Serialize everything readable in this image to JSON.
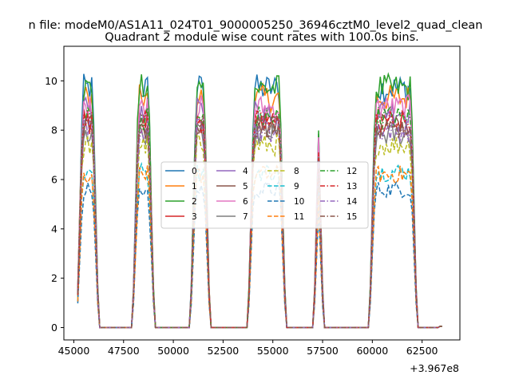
{
  "chart_data": {
    "type": "line",
    "suptitle": "n file: modeM0/AS1A11_024T01_9000005250_36946cztM0_level2_quad_clean",
    "title": "Quadrant 2 module wise count rates with 100.0s bins.",
    "xlabel": "",
    "ylabel": "",
    "x_offset_label": "+3.967e8",
    "xlim": [
      44500,
      64400
    ],
    "ylim": [
      -0.5,
      11.4
    ],
    "x_ticks": [
      45000,
      47500,
      50000,
      52500,
      55000,
      57500,
      60000,
      62500
    ],
    "x_tick_labels": [
      "45000",
      "47500",
      "50000",
      "52500",
      "55000",
      "57500",
      "60000",
      "62500"
    ],
    "y_ticks": [
      0,
      2,
      4,
      6,
      8,
      10
    ],
    "y_tick_labels": [
      "0",
      "2",
      "4",
      "6",
      "8",
      "10"
    ],
    "grid": false,
    "legend": {
      "placement": "center",
      "ncol": 4
    },
    "segments": [
      {
        "start": 45200,
        "end": 46200
      },
      {
        "start": 48000,
        "end": 49000
      },
      {
        "start": 50900,
        "end": 51800
      },
      {
        "start": 53800,
        "end": 55600
      },
      {
        "start": 57100,
        "end": 57500
      },
      {
        "start": 59900,
        "end": 62200
      }
    ],
    "series": [
      {
        "name": "0",
        "color": "#1f77b4",
        "dash": "solid",
        "level": 9.7
      },
      {
        "name": "1",
        "color": "#ff7f0e",
        "dash": "solid",
        "level": 9.3
      },
      {
        "name": "2",
        "color": "#2ca02c",
        "dash": "solid",
        "level": 9.7
      },
      {
        "name": "3",
        "color": "#d62728",
        "dash": "solid",
        "level": 8.4
      },
      {
        "name": "4",
        "color": "#9467bd",
        "dash": "solid",
        "level": 8.8
      },
      {
        "name": "5",
        "color": "#8c564b",
        "dash": "solid",
        "level": 8.1
      },
      {
        "name": "6",
        "color": "#e377c2",
        "dash": "solid",
        "level": 8.9
      },
      {
        "name": "7",
        "color": "#7f7f7f",
        "dash": "solid",
        "level": 7.8
      },
      {
        "name": "8",
        "color": "#bcbd22",
        "dash": "dashed",
        "level": 7.4
      },
      {
        "name": "9",
        "color": "#17becf",
        "dash": "dashed",
        "level": 6.3
      },
      {
        "name": "10",
        "color": "#1f77b4",
        "dash": "dashed",
        "level": 5.6
      },
      {
        "name": "11",
        "color": "#ff7f0e",
        "dash": "dashed",
        "level": 6.2
      },
      {
        "name": "12",
        "color": "#2ca02c",
        "dash": "dashdot",
        "level": 8.5
      },
      {
        "name": "13",
        "color": "#d62728",
        "dash": "dashdot",
        "level": 8.3
      },
      {
        "name": "14",
        "color": "#9467bd",
        "dash": "dashdot",
        "level": 8.0
      },
      {
        "name": "15",
        "color": "#8c564b",
        "dash": "dashdot",
        "level": 8.2
      }
    ]
  }
}
